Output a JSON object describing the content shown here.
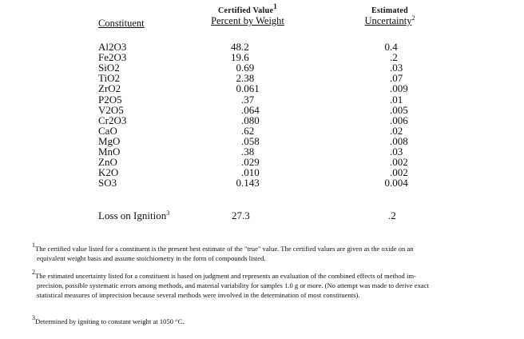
{
  "headers": {
    "constituent": "Constituent",
    "certified_line1": "Certified Value",
    "certified_sup": "1",
    "certified_line2": "Percent by Weight",
    "uncertainty_line1": "Estimated",
    "uncertainty_line2": "Uncertainty",
    "uncertainty_sup": "2"
  },
  "rows": [
    {
      "constituent": "Al2O3",
      "value": "48.2",
      "uncertainty": "0.4"
    },
    {
      "constituent": "Fe2O3",
      "value": "19.6",
      "uncertainty": ".2"
    },
    {
      "constituent": "SiO2",
      "value": "0.69",
      "uncertainty": ".03"
    },
    {
      "constituent": "TiO2",
      "value": "2.38",
      "uncertainty": ".07"
    },
    {
      "constituent": "ZrO2",
      "value": "0.061",
      "uncertainty": ".009"
    },
    {
      "constituent": "P2O5",
      "value": ".37",
      "uncertainty": ".01"
    },
    {
      "constituent": "V2O5",
      "value": ".064",
      "uncertainty": ".005"
    },
    {
      "constituent": "Cr2O3",
      "value": ".080",
      "uncertainty": ".006"
    },
    {
      "constituent": "CaO",
      "value": ".62",
      "uncertainty": ".02"
    },
    {
      "constituent": "MgO",
      "value": ".058",
      "uncertainty": ".008"
    },
    {
      "constituent": "MnO",
      "value": ".38",
      "uncertainty": ".03"
    },
    {
      "constituent": "ZnO",
      "value": ".029",
      "uncertainty": ".002"
    },
    {
      "constituent": "K2O",
      "value": ".010",
      "uncertainty": ".002"
    },
    {
      "constituent": "SO3",
      "value": "0.143",
      "uncertainty": "0.004"
    }
  ],
  "loss_on_ignition": {
    "label": "Loss on Ignition",
    "sup": "3",
    "value": "27.3",
    "uncertainty": ".2"
  },
  "footnotes": [
    {
      "mark": "1",
      "lines": [
        "The certified value listed for a constituent is the present best estimate of the \"true\" value.  The certified values are given as the oxide on an",
        "equivalent weight basis and assume stoichiometry in the form of compounds listed."
      ]
    },
    {
      "mark": "2",
      "lines": [
        "The estimated uncertainty listed for a constituent is based on judgment and represents an evaluation of the combined effects of method im-",
        "precision, possible systematic errors among methods, and material variability for samples 1.0 g or more.  (No attempt was made to derive exact",
        "statistical measures of imprecision because several methods were involved in the determination of most constituents)."
      ]
    },
    {
      "mark": "3",
      "lines": [
        "Determined by igniting to constant weight at 1050 °C."
      ]
    }
  ]
}
